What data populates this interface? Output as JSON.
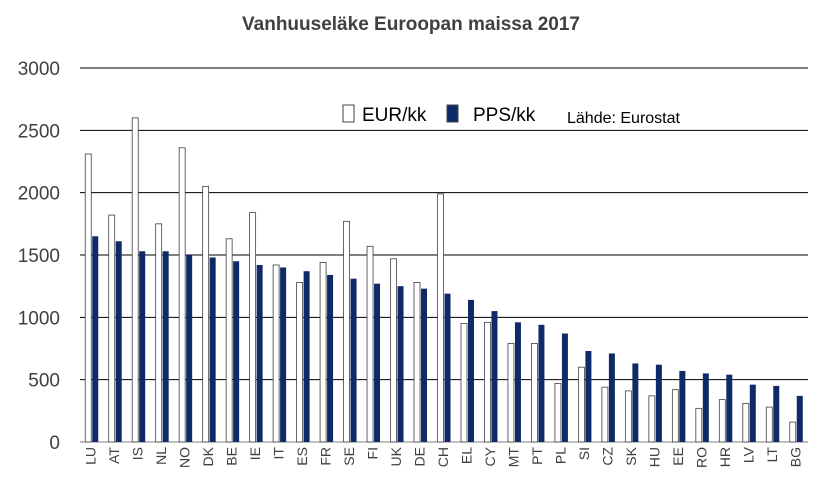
{
  "chart_data": {
    "type": "bar",
    "title": "Vanhuuseläke Euroopan maissa 2017",
    "xlabel": "",
    "ylabel": "",
    "ylim": [
      0,
      3000
    ],
    "yticks": [
      0,
      500,
      1000,
      1500,
      2000,
      2500,
      3000
    ],
    "grid": true,
    "legend_position": "top-center",
    "annotation": "Lähde: Eurostat",
    "categories": [
      "LU",
      "AT",
      "IS",
      "NL",
      "NO",
      "DK",
      "BE",
      "IE",
      "IT",
      "ES",
      "FR",
      "SE",
      "FI",
      "UK",
      "DE",
      "CH",
      "EL",
      "CY",
      "MT",
      "PT",
      "PL",
      "SI",
      "CZ",
      "SK",
      "HU",
      "EE",
      "RO",
      "HR",
      "LV",
      "LT",
      "BG"
    ],
    "series": [
      {
        "name": "EUR/kk",
        "color": "#ffffff",
        "values": [
          2310,
          1820,
          2600,
          1750,
          2360,
          2050,
          1630,
          1840,
          1420,
          1280,
          1440,
          1770,
          1570,
          1470,
          1280,
          1990,
          950,
          960,
          790,
          790,
          470,
          600,
          440,
          410,
          370,
          420,
          270,
          340,
          310,
          280,
          160
        ]
      },
      {
        "name": "PPS/kk",
        "color": "#0f2a66",
        "values": [
          1650,
          1610,
          1530,
          1530,
          1500,
          1480,
          1450,
          1420,
          1400,
          1370,
          1340,
          1310,
          1270,
          1250,
          1230,
          1190,
          1140,
          1050,
          960,
          940,
          870,
          730,
          710,
          630,
          620,
          570,
          550,
          540,
          460,
          450,
          370
        ]
      }
    ]
  }
}
